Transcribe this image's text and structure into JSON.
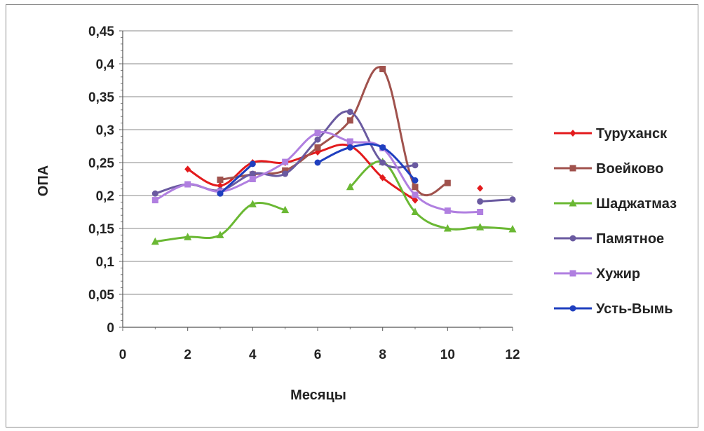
{
  "chart_data": {
    "type": "scatter",
    "xlabel": "Месяцы",
    "ylabel": "ОПА",
    "xlim": [
      0,
      12
    ],
    "ylim": [
      0,
      0.45
    ],
    "x_ticks": [
      "0",
      "2",
      "4",
      "6",
      "8",
      "10",
      "12"
    ],
    "y_ticks": [
      "0",
      "0,05",
      "0,1",
      "0,15",
      "0,2",
      "0,25",
      "0,3",
      "0,35",
      "0,4",
      "0,45"
    ],
    "grid": "horizontal",
    "legend_position": "right",
    "series": [
      {
        "name": "Туруханск",
        "color": "#e31a1c",
        "marker": "diamond",
        "points": [
          [
            2,
            0.24
          ],
          [
            3,
            0.215
          ],
          [
            4,
            0.25
          ],
          [
            5,
            0.25
          ],
          [
            6,
            0.266
          ],
          [
            7,
            0.275
          ],
          [
            8,
            0.227
          ],
          [
            9,
            0.193
          ],
          null,
          [
            11,
            0.211
          ]
        ]
      },
      {
        "name": "Воейково",
        "color": "#a0524d",
        "marker": "square",
        "points": [
          [
            3,
            0.224
          ],
          [
            4,
            0.232
          ],
          [
            5,
            0.238
          ],
          [
            6,
            0.273
          ],
          [
            7,
            0.314
          ],
          [
            8,
            0.392
          ],
          [
            9,
            0.213
          ],
          [
            10,
            0.219
          ]
        ]
      },
      {
        "name": "Шаджатмаз",
        "color": "#6ab833",
        "marker": "triangle",
        "points": [
          [
            1,
            0.13
          ],
          [
            2,
            0.137
          ],
          [
            3,
            0.14
          ],
          [
            4,
            0.187
          ],
          [
            5,
            0.178
          ],
          null,
          [
            7,
            0.213
          ],
          [
            8,
            0.251
          ],
          [
            9,
            0.175
          ],
          [
            10,
            0.15
          ],
          [
            11,
            0.152
          ],
          [
            12,
            0.149
          ]
        ]
      },
      {
        "name": "Памятное",
        "color": "#6a5aa0",
        "marker": "circle",
        "points": [
          [
            1,
            0.203
          ],
          [
            2,
            0.217
          ],
          [
            3,
            0.208
          ],
          [
            4,
            0.233
          ],
          [
            5,
            0.233
          ],
          [
            6,
            0.285
          ],
          [
            7,
            0.327
          ],
          [
            8,
            0.25
          ],
          [
            9,
            0.246
          ],
          null,
          [
            11,
            0.191
          ],
          [
            12,
            0.194
          ]
        ]
      },
      {
        "name": "Хужир",
        "color": "#b07fe0",
        "marker": "square",
        "points": [
          [
            1,
            0.193
          ],
          [
            2,
            0.217
          ],
          [
            3,
            0.206
          ],
          [
            4,
            0.225
          ],
          [
            5,
            0.251
          ],
          [
            6,
            0.295
          ],
          [
            7,
            0.282
          ],
          [
            8,
            0.272
          ],
          [
            9,
            0.201
          ],
          [
            10,
            0.177
          ],
          [
            11,
            0.175
          ]
        ]
      },
      {
        "name": "Усть-Вымь",
        "color": "#1f3fbf",
        "marker": "circle",
        "points": [
          [
            3,
            0.203
          ],
          [
            4,
            0.248
          ],
          null,
          [
            6,
            0.25
          ],
          [
            7,
            0.273
          ],
          [
            8,
            0.273
          ],
          [
            9,
            0.223
          ]
        ]
      }
    ]
  }
}
